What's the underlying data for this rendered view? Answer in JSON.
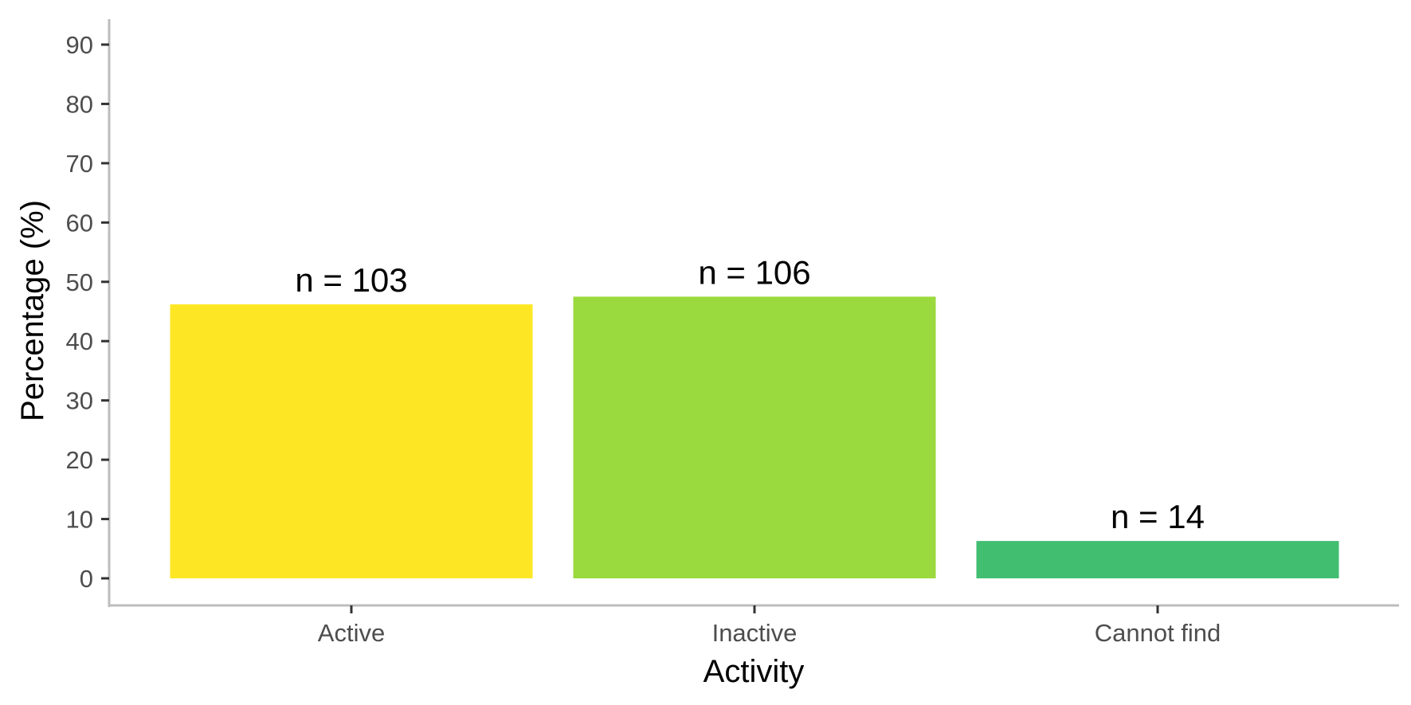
{
  "chart_data": {
    "type": "bar",
    "categories": [
      "Active",
      "Inactive",
      "Cannot find"
    ],
    "values": [
      46.2,
      47.5,
      6.3
    ],
    "data_labels": [
      "n =  103",
      "n =  106",
      "n =  14"
    ],
    "colors": [
      "#FDE725",
      "#9BDA3E",
      "#42BE71"
    ],
    "xlabel": "Activity",
    "ylabel": "Percentage (%)",
    "ylim": [
      0,
      90
    ],
    "yticks": [
      0,
      10,
      20,
      30,
      40,
      50,
      60,
      70,
      80,
      90
    ],
    "grid": false,
    "legend": "none"
  }
}
